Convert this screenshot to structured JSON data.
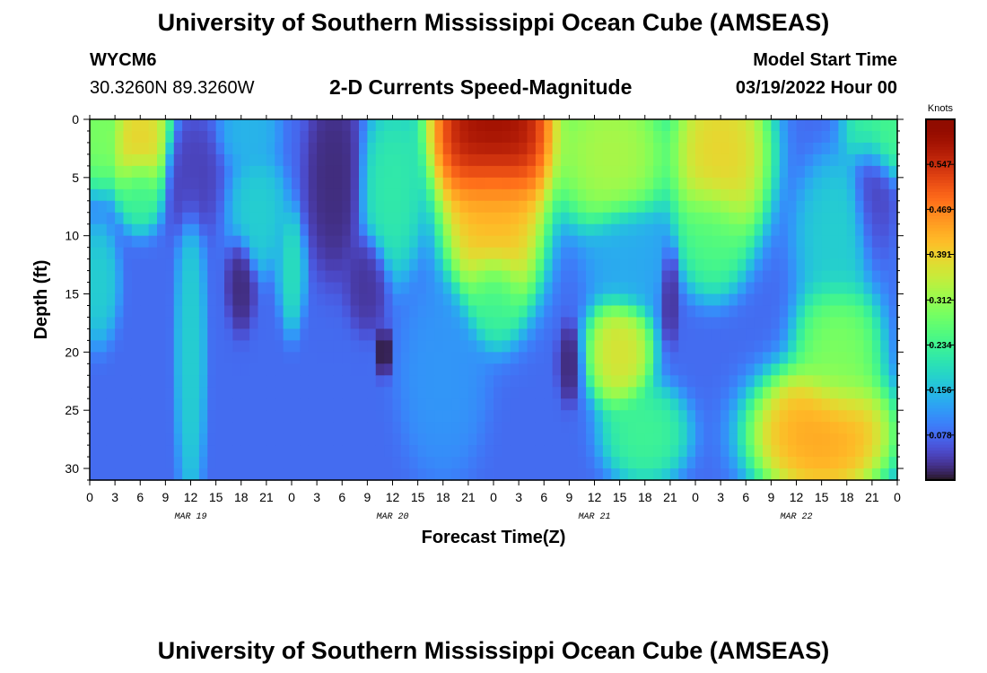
{
  "header": {
    "title": "University of Southern Mississippi Ocean Cube (AMSEAS)",
    "station_id": "WYCM6",
    "station_coords": "30.3260N  89.3260W",
    "plot_title": "2-D Currents Speed-Magnitude",
    "model_start_label": "Model Start Time",
    "model_start_value": "03/19/2022 Hour 00"
  },
  "footer": {
    "title": "University of Southern Mississippi Ocean Cube (AMSEAS)"
  },
  "chart_data": {
    "type": "heatmap",
    "title": "2-D Currents Speed-Magnitude",
    "xlabel": "Forecast Time(Z)",
    "ylabel": "Depth (ft)",
    "x_tick_labels": [
      "0",
      "3",
      "6",
      "9",
      "12",
      "15",
      "18",
      "21",
      "0",
      "3",
      "6",
      "9",
      "12",
      "15",
      "18",
      "21",
      "0",
      "3",
      "6",
      "9",
      "12",
      "15",
      "18",
      "21",
      "0",
      "3",
      "6",
      "9",
      "12",
      "15",
      "18",
      "21",
      "0"
    ],
    "day_labels": [
      "MAR 19",
      "MAR 20",
      "MAR 21",
      "MAR 22"
    ],
    "xlim_hours": [
      0,
      96
    ],
    "y_ticks": [
      0,
      5,
      10,
      15,
      20,
      25,
      30
    ],
    "ylim_ft": [
      31,
      0
    ],
    "y_inverted": true,
    "colorbar": {
      "unit": "Knots",
      "ticks": [
        "0.547",
        "0.469",
        "0.391",
        "0.312",
        "0.234",
        "0.156",
        "0.078"
      ],
      "range": [
        0,
        0.625
      ],
      "colormap": "turbo"
    },
    "features": [
      {
        "t": 1,
        "d": 1,
        "v": 0.3,
        "sx": 1.5,
        "sy": 3
      },
      {
        "t": 6,
        "d": 2,
        "v": 0.4,
        "sx": 2.2,
        "sy": 3.5
      },
      {
        "t": 6,
        "d": 6,
        "v": 0.22,
        "sx": 1.5,
        "sy": 2
      },
      {
        "t": 1,
        "d": 14,
        "v": 0.18,
        "sx": 1.4,
        "sy": 3
      },
      {
        "t": 12,
        "d": 20,
        "v": 0.18,
        "sx": 1.0,
        "sy": 8
      },
      {
        "t": 19,
        "d": 1,
        "v": 0.15,
        "sx": 2,
        "sy": 2
      },
      {
        "t": 24,
        "d": 13,
        "v": 0.2,
        "sx": 0.9,
        "sy": 3
      },
      {
        "t": 36,
        "d": 6,
        "v": 0.22,
        "sx": 2.2,
        "sy": 4.5
      },
      {
        "t": 48,
        "d": 1,
        "v": 0.62,
        "sx": 4.5,
        "sy": 5
      },
      {
        "t": 48,
        "d": 9,
        "v": 0.42,
        "sx": 3.5,
        "sy": 5
      },
      {
        "t": 48,
        "d": 15,
        "v": 0.22,
        "sx": 2,
        "sy": 2.5
      },
      {
        "t": 62,
        "d": 3,
        "v": 0.34,
        "sx": 4,
        "sy": 4
      },
      {
        "t": 75,
        "d": 3,
        "v": 0.4,
        "sx": 3.5,
        "sy": 5
      },
      {
        "t": 74,
        "d": 10,
        "v": 0.25,
        "sx": 2.5,
        "sy": 3
      },
      {
        "t": 63,
        "d": 20,
        "v": 0.38,
        "sx": 2.3,
        "sy": 3
      },
      {
        "t": 66,
        "d": 27,
        "v": 0.24,
        "sx": 3,
        "sy": 2.5
      },
      {
        "t": 87,
        "d": 27,
        "v": 0.45,
        "sx": 5,
        "sy": 3.5
      },
      {
        "t": 89,
        "d": 20,
        "v": 0.3,
        "sx": 3,
        "sy": 4
      },
      {
        "t": 94,
        "d": 1,
        "v": 0.25,
        "sx": 2.5,
        "sy": 2.5
      },
      {
        "t": 20,
        "d": 8,
        "v": 0.18,
        "sx": 2,
        "sy": 3
      },
      {
        "t": 42,
        "d": 22,
        "v": 0.12,
        "sx": 3,
        "sy": 5
      },
      {
        "t": 64,
        "d": 12,
        "v": 0.14,
        "sx": 3,
        "sy": 3
      },
      {
        "t": 89,
        "d": 10,
        "v": 0.18,
        "sx": 3,
        "sy": 4
      },
      {
        "t": 35,
        "d": 20,
        "v": 0.0,
        "sx": 0.5,
        "sy": 1.3
      },
      {
        "t": 29,
        "d": 5,
        "v": 0.02,
        "sx": 2,
        "sy": 5
      },
      {
        "t": 57,
        "d": 21,
        "v": 0.02,
        "sx": 0.8,
        "sy": 2
      },
      {
        "t": 18,
        "d": 14,
        "v": 0.02,
        "sx": 1,
        "sy": 2.5
      },
      {
        "t": 33,
        "d": 14,
        "v": 0.03,
        "sx": 1.5,
        "sy": 2.5
      },
      {
        "t": 69,
        "d": 15,
        "v": 0.03,
        "sx": 0.7,
        "sy": 2.5
      },
      {
        "t": 93,
        "d": 7,
        "v": 0.04,
        "sx": 1.5,
        "sy": 4
      },
      {
        "t": 12,
        "d": 5,
        "v": 0.04,
        "sx": 2,
        "sy": 3
      }
    ],
    "background_value": 0.08
  }
}
